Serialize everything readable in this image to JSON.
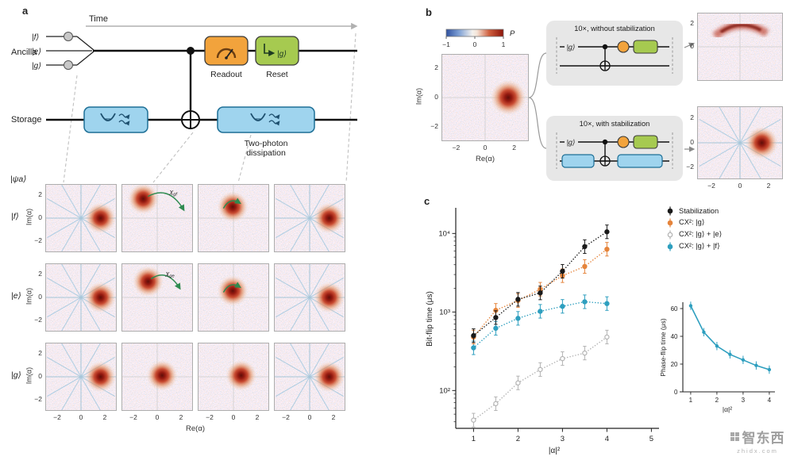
{
  "watermark": {
    "text": "智东西",
    "sub": "zhidx.com"
  },
  "panel_a": {
    "label": "a",
    "time_label": "Time",
    "ancilla_label": "Ancilla",
    "levels": [
      "|f⟩",
      "|e⟩",
      "|g⟩"
    ],
    "readout_label": "Readout",
    "reset_label": "Reset",
    "reset_state": "|g⟩",
    "storage_label": "Storage",
    "dissipation_label_1": "Two-photon",
    "dissipation_label_2": "dissipation",
    "psi_label": "|ψa⟩",
    "wigner": {
      "ylabel": "Im(α)",
      "xlabel": "Re(α)",
      "yticks": [
        "2",
        "0",
        "−2"
      ],
      "xticks": [
        "−2",
        "0",
        "2"
      ],
      "rows": [
        {
          "label": "|f⟩",
          "cells": [
            {
              "bx": 0.78,
              "by": 0.5,
              "fringes": true
            },
            {
              "bx": 0.3,
              "by": 0.21,
              "arc": "big",
              "arc_sym": "χ",
              "arc_sub": "gf"
            },
            {
              "bx": 0.49,
              "by": 0.33,
              "arc": "tiny"
            },
            {
              "bx": 0.78,
              "by": 0.5,
              "fringes": true
            }
          ]
        },
        {
          "label": "|e⟩",
          "cells": [
            {
              "bx": 0.78,
              "by": 0.5,
              "fringes": true
            },
            {
              "bx": 0.37,
              "by": 0.26,
              "arc": "mid",
              "arc_sym": "χ",
              "arc_sub": "ge"
            },
            {
              "bx": 0.49,
              "by": 0.4,
              "arc": "tiny"
            },
            {
              "bx": 0.78,
              "by": 0.5,
              "fringes": true
            }
          ]
        },
        {
          "label": "|g⟩",
          "cells": [
            {
              "bx": 0.78,
              "by": 0.5,
              "fringes": true
            },
            {
              "bx": 0.57,
              "by": 0.48
            },
            {
              "bx": 0.61,
              "by": 0.48
            },
            {
              "bx": 0.78,
              "by": 0.5,
              "fringes": true
            }
          ]
        }
      ]
    }
  },
  "panel_b": {
    "label": "b",
    "colorbar": {
      "ticks": [
        "−1",
        "0",
        "1"
      ],
      "label": "P"
    },
    "left_plot": {
      "ylabel": "Im(α)",
      "xlabel": "Re(α)",
      "yticks": [
        "2",
        "0",
        "−2"
      ],
      "xticks": [
        "−2",
        "0",
        "2"
      ]
    },
    "box_without": {
      "title": "10×, without stabilization",
      "state": "|g⟩"
    },
    "box_with": {
      "title": "10×, with stabilization",
      "state": "|g⟩"
    },
    "top_plot": {
      "yticks": [
        "2",
        "0"
      ]
    },
    "bottom_plot": {
      "yticks": [
        "2",
        "0",
        "−2"
      ],
      "xticks": [
        "−2",
        "0",
        "2"
      ]
    }
  },
  "panel_c": {
    "label": "c"
  },
  "chart_data": [
    {
      "type": "scatter",
      "xlabel": "|α|²",
      "ylabel": "Bit-flip time (μs)",
      "yscale": "log",
      "xlim": [
        0.7,
        5.3
      ],
      "ylim": [
        33,
        20000
      ],
      "xticks": [
        1,
        2,
        3,
        4,
        5
      ],
      "yticks": [
        "10²",
        "10³",
        "10⁴"
      ],
      "ytick_values": [
        100,
        1000,
        10000
      ],
      "x": [
        1,
        1.5,
        2,
        2.5,
        3,
        3.5,
        4
      ],
      "line_style": "dotted",
      "legend_position": "upper right",
      "series": [
        {
          "name": "Stabilization",
          "color": "#1a1a1a",
          "values": [
            500,
            850,
            1450,
            1750,
            3300,
            6800,
            10500
          ]
        },
        {
          "name": "CX²: |g⟩",
          "color": "#e5843b",
          "values": [
            480,
            1050,
            1400,
            1950,
            2900,
            3800,
            6300
          ]
        },
        {
          "name": "CX²: |g⟩ + |e⟩",
          "color": "#b3b3b3",
          "open": true,
          "values": [
            42,
            68,
            125,
            185,
            255,
            300,
            480
          ]
        },
        {
          "name": "CX²: |g⟩ + |f⟩",
          "color": "#2e9fbf",
          "values": [
            350,
            620,
            830,
            1020,
            1180,
            1350,
            1280
          ]
        }
      ]
    },
    {
      "type": "line",
      "xlabel": "|α|²",
      "ylabel": "Phase-flip time (μs)",
      "color": "#2e9fbf",
      "x": [
        1,
        1.5,
        2,
        2.5,
        3,
        3.5,
        4
      ],
      "values": [
        62,
        43,
        33,
        27,
        23,
        19,
        16
      ],
      "xticks": [
        1,
        2,
        3,
        4
      ],
      "yticks": [
        0,
        20,
        40,
        60
      ],
      "ylim": [
        0,
        70
      ]
    }
  ]
}
